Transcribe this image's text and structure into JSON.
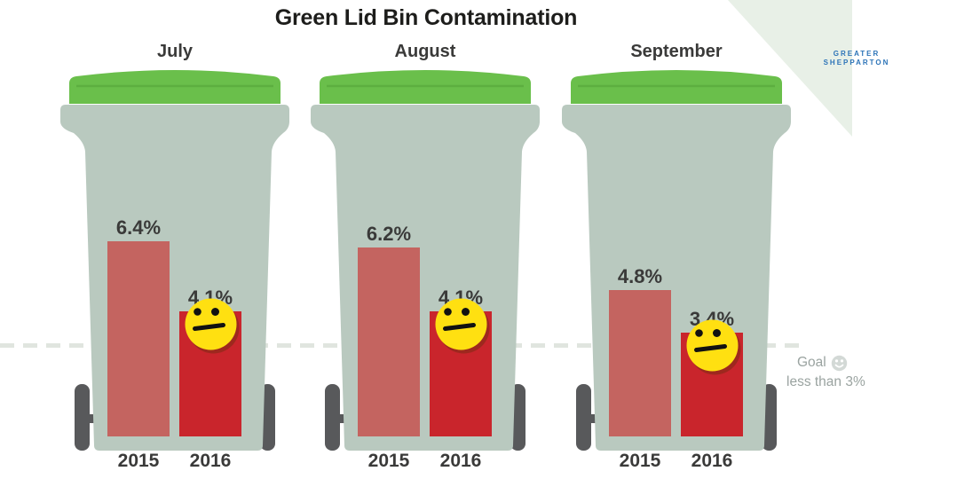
{
  "title": "Green Lid Bin Contamination",
  "chart_data": {
    "type": "bar",
    "title": "Green Lid Bin Contamination",
    "groups": [
      "July",
      "August",
      "September"
    ],
    "categories": [
      "2015",
      "2016"
    ],
    "series": [
      {
        "name": "2015",
        "values": [
          6.4,
          6.2,
          4.8
        ],
        "display": [
          "6.4%",
          "6.2%",
          "4.8%"
        ],
        "color": "#c46460"
      },
      {
        "name": "2016",
        "values": [
          4.1,
          4.1,
          3.4
        ],
        "display": [
          "4.1%",
          "4.1%",
          "3.4%"
        ],
        "color": "#c9252c"
      }
    ],
    "unit": "%",
    "goal": {
      "value": 3,
      "label": "Goal",
      "detail": "less than 3%"
    },
    "legend_position": "none",
    "grid": false,
    "annotations": [
      "neutral-face on each 2016 bar",
      "dashed goal line at 3%"
    ]
  },
  "labels": {
    "year1": "2015",
    "year2": "2016"
  },
  "goal": {
    "label": "Goal",
    "detail": "less than 3%"
  },
  "logo": {
    "line1": "Greater",
    "line2": "Shepparton"
  },
  "icons": {
    "bin": "green-lid-wheelie-bin",
    "face_2016": "neutral-face-icon",
    "goal_face": "smiling-face-icon"
  },
  "colors": {
    "ink": "#1d1d1b",
    "label": "#3a3a39",
    "lid": "#6abf4b",
    "lidseam": "#5daf40",
    "binbody": "#b9c9bf",
    "wheel": "#58595b",
    "bar2015": "#c46460",
    "bar2016": "#c9252c",
    "smileyfill": "#ffe011",
    "dash": "#e0e5df",
    "goaltext": "#9aa3a0",
    "goalface": "#d3d9d6",
    "cornergreen": "#e8f0e7",
    "logoblue": "#2d74b8"
  }
}
